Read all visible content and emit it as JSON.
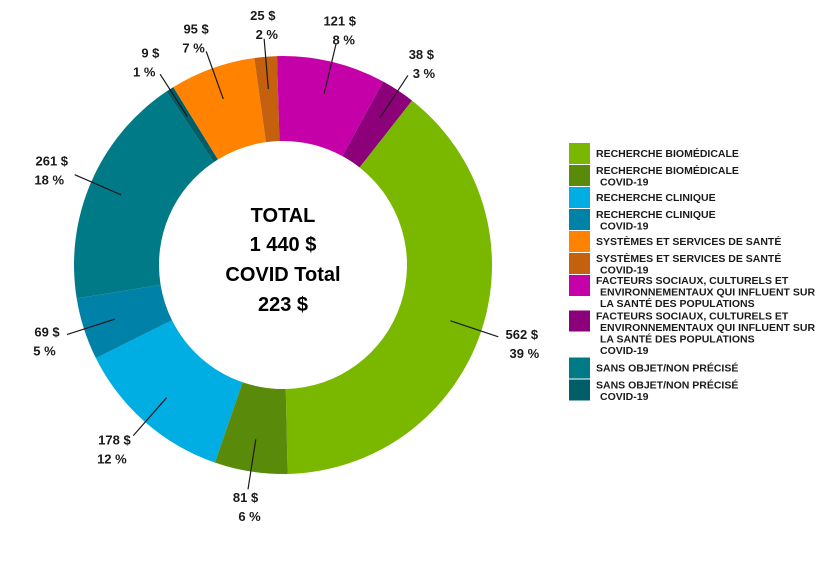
{
  "chart_data": {
    "type": "pie",
    "center_lines": [
      "TOTAL",
      "1 440 $",
      "COVID Total",
      "223 $"
    ],
    "slices": [
      {
        "legend": "RECHERCHE CLINIQUE",
        "value_label": "178 $",
        "pct_label": "12 %",
        "value": 178,
        "color": "#00aee3"
      },
      {
        "legend": "RECHERCHE CLINIQUE COVID-19",
        "value_label": "69 $",
        "pct_label": "5 %",
        "value": 69,
        "color": "#0081a8"
      },
      {
        "legend": "SANS OBJET/NON PRÉCISÉ",
        "value_label": "261 $",
        "pct_label": "18 %",
        "value": 261,
        "color": "#007a87"
      },
      {
        "legend": "SANS OBJET/NON PRÉCISÉ COVID-19",
        "value_label": "9 $",
        "pct_label": "1 %",
        "value": 9,
        "color": "#005e69"
      },
      {
        "legend": "SYSTÈMES ET SERVICES DE SANTÉ",
        "value_label": "95 $",
        "pct_label": "7 %",
        "value": 95,
        "color": "#ff8200"
      },
      {
        "legend": "SYSTÈMES ET SERVICES DE SANTÉ COVID-19",
        "value_label": "25 $",
        "pct_label": "2 %",
        "value": 25,
        "color": "#c5600f"
      },
      {
        "legend": "FACTEURS SOCIAUX, CULTURELS ET ENVIRONNEMENTAUX QUI INFLUENT SUR LA SANTÉ DES POPULATIONS",
        "value_label": "121 $",
        "pct_label": "8 %",
        "value": 121,
        "color": "#c600a9"
      },
      {
        "legend": "FACTEURS SOCIAUX, CULTURELS ET ENVIRONNEMENTAUX QUI INFLUENT SUR LA SANTÉ DES POPULATIONS COVID-19",
        "value_label": "38 $",
        "pct_label": "3 %",
        "value": 38,
        "color": "#8c007a"
      },
      {
        "legend": "RECHERCHE BIOMÉDICALE",
        "value_label": "562 $",
        "pct_label": "39 %",
        "value": 562,
        "color": "#7ab800"
      },
      {
        "legend": "RECHERCHE BIOMÉDICALE COVID-19",
        "value_label": "81 $",
        "pct_label": "6 %",
        "value": 81,
        "color": "#5a8a0a"
      }
    ],
    "legend": {
      "placement": "right",
      "items": [
        {
          "lines": [
            "RECHERCHE BIOMÉDICALE"
          ],
          "color": "#7ab800"
        },
        {
          "lines": [
            "RECHERCHE BIOMÉDICALE",
            "COVID-19"
          ],
          "color": "#5a8a0a"
        },
        {
          "lines": [
            "RECHERCHE CLINIQUE"
          ],
          "color": "#00aee3"
        },
        {
          "lines": [
            "RECHERCHE CLINIQUE",
            "COVID-19"
          ],
          "color": "#0081a8"
        },
        {
          "lines": [
            "SYSTÈMES ET SERVICES DE SANTÉ"
          ],
          "color": "#ff8200"
        },
        {
          "lines": [
            "SYSTÈMES ET SERVICES DE SANTÉ",
            "COVID-19"
          ],
          "color": "#c5600f"
        },
        {
          "lines": [
            "FACTEURS SOCIAUX, CULTURELS ET",
            "ENVIRONNEMENTAUX QUI INFLUENT SUR",
            "LA SANTÉ DES POPULATIONS"
          ],
          "color": "#c600a9"
        },
        {
          "lines": [
            "FACTEURS SOCIAUX, CULTURELS ET",
            "ENVIRONNEMENTAUX QUI INFLUENT SUR",
            "LA SANTÉ DES POPULATIONS",
            "COVID-19"
          ],
          "color": "#8c007a"
        },
        {
          "lines": [
            "SANS OBJET/NON PRÉCISÉ"
          ],
          "color": "#007a87"
        },
        {
          "lines": [
            "SANS OBJET/NON PRÉCISÉ",
            "COVID-19"
          ],
          "color": "#005e69"
        }
      ]
    }
  }
}
